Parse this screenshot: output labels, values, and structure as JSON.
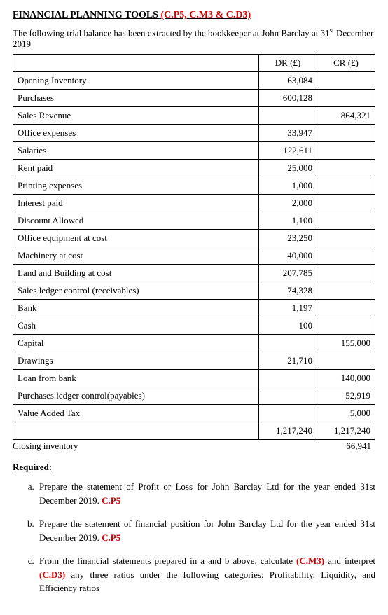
{
  "title": {
    "main": "FINANCIAL PLANNING TOOLS ",
    "codes": "(C.P5, C.M3 & C.D3)"
  },
  "intro": {
    "prefix": "The following trial balance has been extracted by the bookkeeper at John Barclay at 31",
    "sup": "st",
    "suffix": " December 2019"
  },
  "table": {
    "headers": {
      "dr": "DR (£)",
      "cr": "CR (£)"
    },
    "rows": [
      {
        "label": "Opening Inventory",
        "dr": "63,084",
        "cr": ""
      },
      {
        "label": "Purchases",
        "dr": "600,128",
        "cr": ""
      },
      {
        "label": "Sales Revenue",
        "dr": "",
        "cr": "864,321"
      },
      {
        "label": "Office expenses",
        "dr": "33,947",
        "cr": ""
      },
      {
        "label": "Salaries",
        "dr": "122,611",
        "cr": ""
      },
      {
        "label": "Rent paid",
        "dr": "25,000",
        "cr": ""
      },
      {
        "label": "Printing expenses",
        "dr": "1,000",
        "cr": ""
      },
      {
        "label": "Interest paid",
        "dr": "2,000",
        "cr": ""
      },
      {
        "label": "Discount Allowed",
        "dr": "1,100",
        "cr": ""
      },
      {
        "label": "Office equipment at cost",
        "dr": "23,250",
        "cr": ""
      },
      {
        "label": "Machinery at cost",
        "dr": "40,000",
        "cr": ""
      },
      {
        "label": "Land and Building at cost",
        "dr": "207,785",
        "cr": ""
      },
      {
        "label": "Sales ledger control (receivables)",
        "dr": "74,328",
        "cr": ""
      },
      {
        "label": "Bank",
        "dr": "1,197",
        "cr": ""
      },
      {
        "label": "Cash",
        "dr": "100",
        "cr": ""
      },
      {
        "label": "Capital",
        "dr": "",
        "cr": "155,000"
      },
      {
        "label": "Drawings",
        "dr": "21,710",
        "cr": ""
      },
      {
        "label": "Loan from bank",
        "dr": "",
        "cr": "140,000"
      },
      {
        "label": "Purchases ledger control(payables)",
        "dr": "",
        "cr": "52,919"
      },
      {
        "label": "Value Added Tax",
        "dr": "",
        "cr": "5,000"
      }
    ],
    "totals": {
      "dr": "1,217,240",
      "cr": "1,217,240"
    }
  },
  "closing": {
    "label": "Closing inventory",
    "value": "66,941"
  },
  "required_heading": "Required:",
  "requirements": [
    {
      "text_before": "Prepare the statement of Profit or Loss for John Barclay Ltd for the year ended 31st December 2019. ",
      "code": "C.P5",
      "text_after": ""
    },
    {
      "text_before": "Prepare the statement of financial position for John Barclay Ltd for the year ended 31st December 2019. ",
      "code": "C.P5",
      "text_after": ""
    },
    {
      "text_before": "From the financial statements prepared in a and b above, calculate ",
      "code": "(C.M3)",
      "mid": " and interpret ",
      "code2": "(C.D3)",
      "text_after": " any three ratios under the following categories: Profitability, Liquidity, and Efficiency ratios"
    }
  ]
}
